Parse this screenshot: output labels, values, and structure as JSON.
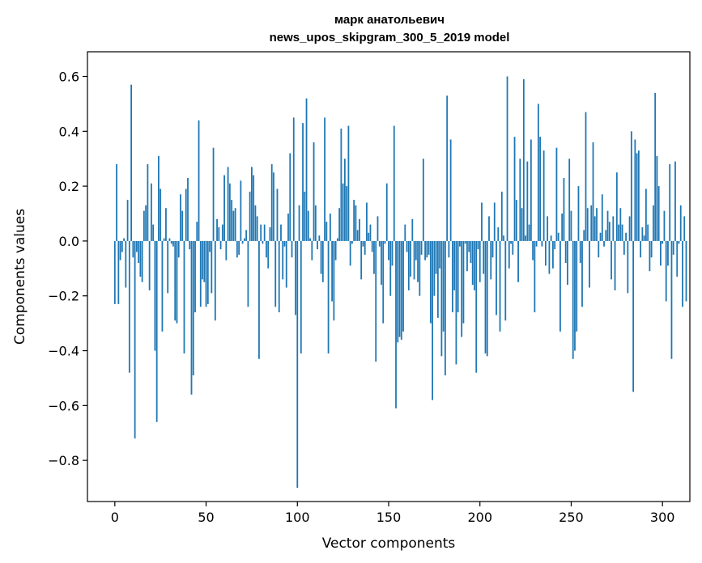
{
  "chart_data": {
    "type": "bar",
    "title": [
      "марк анатольевич",
      "news_upos_skipgram_300_5_2019 model"
    ],
    "xlabel": "Vector components",
    "ylabel": "Components values",
    "xlim": [
      -15,
      315
    ],
    "ylim": [
      -0.95,
      0.69
    ],
    "xticks": [
      0,
      50,
      100,
      150,
      200,
      250,
      300
    ],
    "xtick_labels": [
      "0",
      "50",
      "100",
      "150",
      "200",
      "250",
      "300"
    ],
    "yticks": [
      -0.8,
      -0.6,
      -0.4,
      -0.2,
      0.0,
      0.2,
      0.4,
      0.6
    ],
    "ytick_labels": [
      "−0.8",
      "−0.6",
      "−0.4",
      "−0.2",
      "0.0",
      "0.2",
      "0.4",
      "0.6"
    ],
    "bar_color": "#1f77b4",
    "grid": false,
    "values": [
      -0.23,
      0.28,
      -0.23,
      -0.07,
      -0.04,
      0.01,
      -0.17,
      0.15,
      -0.48,
      0.57,
      -0.06,
      -0.72,
      -0.04,
      -0.08,
      -0.13,
      -0.15,
      0.11,
      0.13,
      0.28,
      -0.18,
      0.21,
      0.06,
      -0.4,
      -0.66,
      0.31,
      0.19,
      -0.33,
      0.01,
      0.12,
      -0.19,
      0.01,
      -0.01,
      -0.02,
      -0.29,
      -0.3,
      -0.06,
      0.17,
      0.11,
      -0.41,
      0.19,
      0.23,
      -0.03,
      -0.56,
      -0.49,
      -0.26,
      0.07,
      0.44,
      -0.24,
      -0.14,
      -0.15,
      -0.24,
      -0.23,
      -0.04,
      -0.19,
      0.34,
      -0.29,
      0.08,
      0.05,
      -0.03,
      0.06,
      0.24,
      -0.07,
      0.27,
      0.21,
      0.15,
      0.11,
      0.12,
      -0.06,
      -0.05,
      0.22,
      -0.01,
      0.01,
      0.04,
      -0.24,
      0.18,
      0.27,
      0.24,
      0.13,
      0.09,
      -0.43,
      0.06,
      -0.01,
      0.06,
      -0.06,
      -0.1,
      0.05,
      0.28,
      0.25,
      -0.24,
      0.19,
      -0.26,
      0.06,
      -0.14,
      -0.02,
      -0.17,
      0.1,
      0.32,
      -0.06,
      0.45,
      -0.27,
      -0.9,
      0.13,
      -0.41,
      0.43,
      0.18,
      0.52,
      0.11,
      0.01,
      -0.07,
      0.36,
      0.13,
      -0.03,
      0.02,
      -0.12,
      -0.15,
      0.45,
      0.07,
      -0.41,
      0.1,
      -0.22,
      -0.29,
      -0.07,
      0.01,
      0.12,
      0.41,
      0.21,
      0.3,
      0.2,
      0.42,
      -0.09,
      -0.01,
      0.15,
      0.13,
      0.04,
      0.08,
      -0.14,
      -0.02,
      -0.05,
      0.14,
      0.03,
      0.06,
      -0.04,
      -0.12,
      -0.44,
      0.09,
      -0.02,
      -0.16,
      -0.3,
      -0.01,
      0.21,
      -0.07,
      -0.2,
      -0.09,
      0.42,
      -0.61,
      -0.37,
      -0.35,
      -0.36,
      -0.33,
      0.06,
      -0.04,
      -0.18,
      -0.13,
      0.08,
      -0.14,
      -0.07,
      -0.15,
      -0.2,
      -0.05,
      0.3,
      -0.07,
      -0.06,
      -0.05,
      -0.3,
      -0.58,
      -0.2,
      -0.12,
      -0.28,
      -0.1,
      -0.42,
      -0.33,
      -0.49,
      0.53,
      -0.06,
      0.37,
      -0.26,
      -0.18,
      -0.45,
      -0.26,
      -0.02,
      -0.35,
      -0.3,
      -0.01,
      -0.11,
      -0.04,
      -0.08,
      -0.16,
      -0.18,
      -0.48,
      -0.03,
      -0.15,
      0.14,
      -0.12,
      -0.41,
      -0.42,
      0.09,
      -0.14,
      -0.06,
      0.14,
      -0.27,
      0.05,
      -0.33,
      0.18,
      0.02,
      -0.29,
      0.6,
      -0.1,
      -0.01,
      -0.05,
      0.38,
      0.15,
      -0.15,
      0.3,
      0.12,
      0.59,
      0.02,
      0.29,
      0.06,
      0.37,
      -0.07,
      -0.26,
      -0.02,
      0.5,
      0.38,
      -0.02,
      0.33,
      -0.09,
      0.09,
      -0.12,
      0.02,
      -0.1,
      -0.03,
      0.34,
      0.03,
      -0.33,
      0.1,
      0.23,
      -0.08,
      -0.16,
      0.3,
      0.11,
      -0.43,
      -0.4,
      -0.33,
      0.2,
      -0.08,
      -0.24,
      0.04,
      0.47,
      0.12,
      -0.17,
      0.13,
      0.36,
      0.09,
      0.12,
      -0.06,
      0.03,
      0.17,
      -0.02,
      0.04,
      0.11,
      0.07,
      -0.14,
      0.09,
      -0.18,
      0.25,
      0.06,
      0.12,
      0.06,
      -0.05,
      0.03,
      -0.19,
      0.09,
      0.4,
      -0.55,
      0.37,
      0.32,
      0.33,
      -0.06,
      0.05,
      0.02,
      0.19,
      0.06,
      -0.11,
      -0.06,
      0.13,
      0.54,
      0.31,
      0.2,
      -0.09,
      -0.01,
      0.11,
      -0.22,
      -0.09,
      0.28,
      -0.43,
      -0.05,
      0.29,
      -0.13,
      -0.01,
      0.13,
      -0.24,
      0.09,
      -0.22
    ]
  }
}
